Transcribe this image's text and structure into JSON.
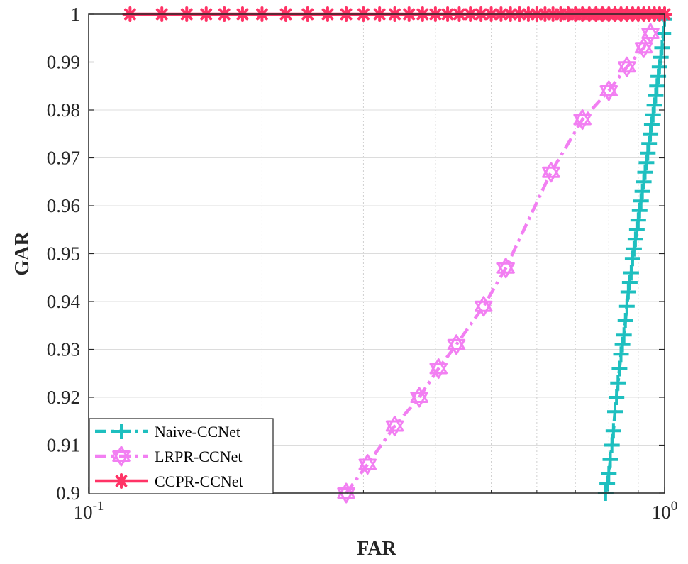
{
  "chart_data": {
    "type": "line",
    "title": "",
    "xlabel": "FAR",
    "ylabel": "GAR",
    "xscale": "log",
    "xlim": [
      0.1,
      1.0
    ],
    "ylim": [
      0.9,
      1.0
    ],
    "grid": true,
    "legend_position": "bottom-left",
    "x_ticks": [
      {
        "value": 0.1,
        "base": "10",
        "exp": "-1"
      },
      {
        "value": 1.0,
        "base": "10",
        "exp": "0"
      }
    ],
    "y_ticks": [
      {
        "value": 0.9,
        "label": "0.9"
      },
      {
        "value": 0.91,
        "label": "0.91"
      },
      {
        "value": 0.92,
        "label": "0.92"
      },
      {
        "value": 0.93,
        "label": "0.93"
      },
      {
        "value": 0.94,
        "label": "0.94"
      },
      {
        "value": 0.95,
        "label": "0.95"
      },
      {
        "value": 0.96,
        "label": "0.96"
      },
      {
        "value": 0.97,
        "label": "0.97"
      },
      {
        "value": 0.98,
        "label": "0.98"
      },
      {
        "value": 0.99,
        "label": "0.99"
      },
      {
        "value": 1.0,
        "label": "1"
      }
    ],
    "series": [
      {
        "name": "Naive-CCNet",
        "color": "#1ebfbf",
        "line_style": "dashdot",
        "marker": "plus",
        "x": [
          0.79,
          0.795,
          0.8,
          0.805,
          0.81,
          0.815,
          0.82,
          0.825,
          0.83,
          0.835,
          0.84,
          0.845,
          0.85,
          0.855,
          0.86,
          0.865,
          0.87,
          0.875,
          0.88,
          0.885,
          0.89,
          0.895,
          0.9,
          0.905,
          0.91,
          0.915,
          0.92,
          0.925,
          0.93,
          0.935,
          0.94,
          0.945,
          0.95,
          0.955,
          0.96,
          0.965,
          0.97,
          0.975,
          0.98,
          0.985,
          0.99,
          0.995,
          1.0
        ],
        "y": [
          0.9,
          0.902,
          0.904,
          0.907,
          0.91,
          0.913,
          0.917,
          0.92,
          0.923,
          0.926,
          0.929,
          0.931,
          0.933,
          0.936,
          0.939,
          0.942,
          0.944,
          0.946,
          0.949,
          0.951,
          0.953,
          0.955,
          0.957,
          0.959,
          0.961,
          0.963,
          0.965,
          0.967,
          0.969,
          0.971,
          0.973,
          0.975,
          0.977,
          0.979,
          0.981,
          0.983,
          0.985,
          0.987,
          0.989,
          0.991,
          0.993,
          0.996,
          0.999
        ]
      },
      {
        "name": "LRPR-CCNet",
        "color": "#f27ff2",
        "line_style": "dashdot",
        "marker": "hexagram",
        "x": [
          0.28,
          0.305,
          0.34,
          0.375,
          0.405,
          0.435,
          0.485,
          0.53,
          0.635,
          0.72,
          0.8,
          0.86,
          0.92,
          0.945
        ],
        "y": [
          0.9,
          0.906,
          0.914,
          0.92,
          0.926,
          0.931,
          0.939,
          0.947,
          0.967,
          0.978,
          0.984,
          0.989,
          0.993,
          0.996
        ]
      },
      {
        "name": "CCPR-CCNet",
        "color": "#ff3366",
        "line_style": "solid",
        "marker": "asterisk",
        "x": [
          0.118,
          0.134,
          0.148,
          0.16,
          0.172,
          0.185,
          0.2,
          0.22,
          0.24,
          0.26,
          0.28,
          0.3,
          0.32,
          0.34,
          0.36,
          0.38,
          0.4,
          0.42,
          0.44,
          0.46,
          0.48,
          0.5,
          0.52,
          0.54,
          0.56,
          0.58,
          0.6,
          0.62,
          0.64,
          0.66,
          0.68,
          0.7,
          0.72,
          0.74,
          0.76,
          0.78,
          0.8,
          0.82,
          0.84,
          0.86,
          0.88,
          0.9,
          0.92,
          0.94,
          0.96,
          0.98,
          1.0
        ],
        "y": [
          1,
          1,
          1,
          1,
          1,
          1,
          1,
          1,
          1,
          1,
          1,
          1,
          1,
          1,
          1,
          1,
          1,
          1,
          1,
          1,
          1,
          1,
          1,
          1,
          1,
          1,
          1,
          1,
          1,
          1,
          1,
          1,
          1,
          1,
          1,
          1,
          1,
          1,
          1,
          1,
          1,
          1,
          1,
          1,
          1,
          1,
          1
        ]
      }
    ]
  }
}
